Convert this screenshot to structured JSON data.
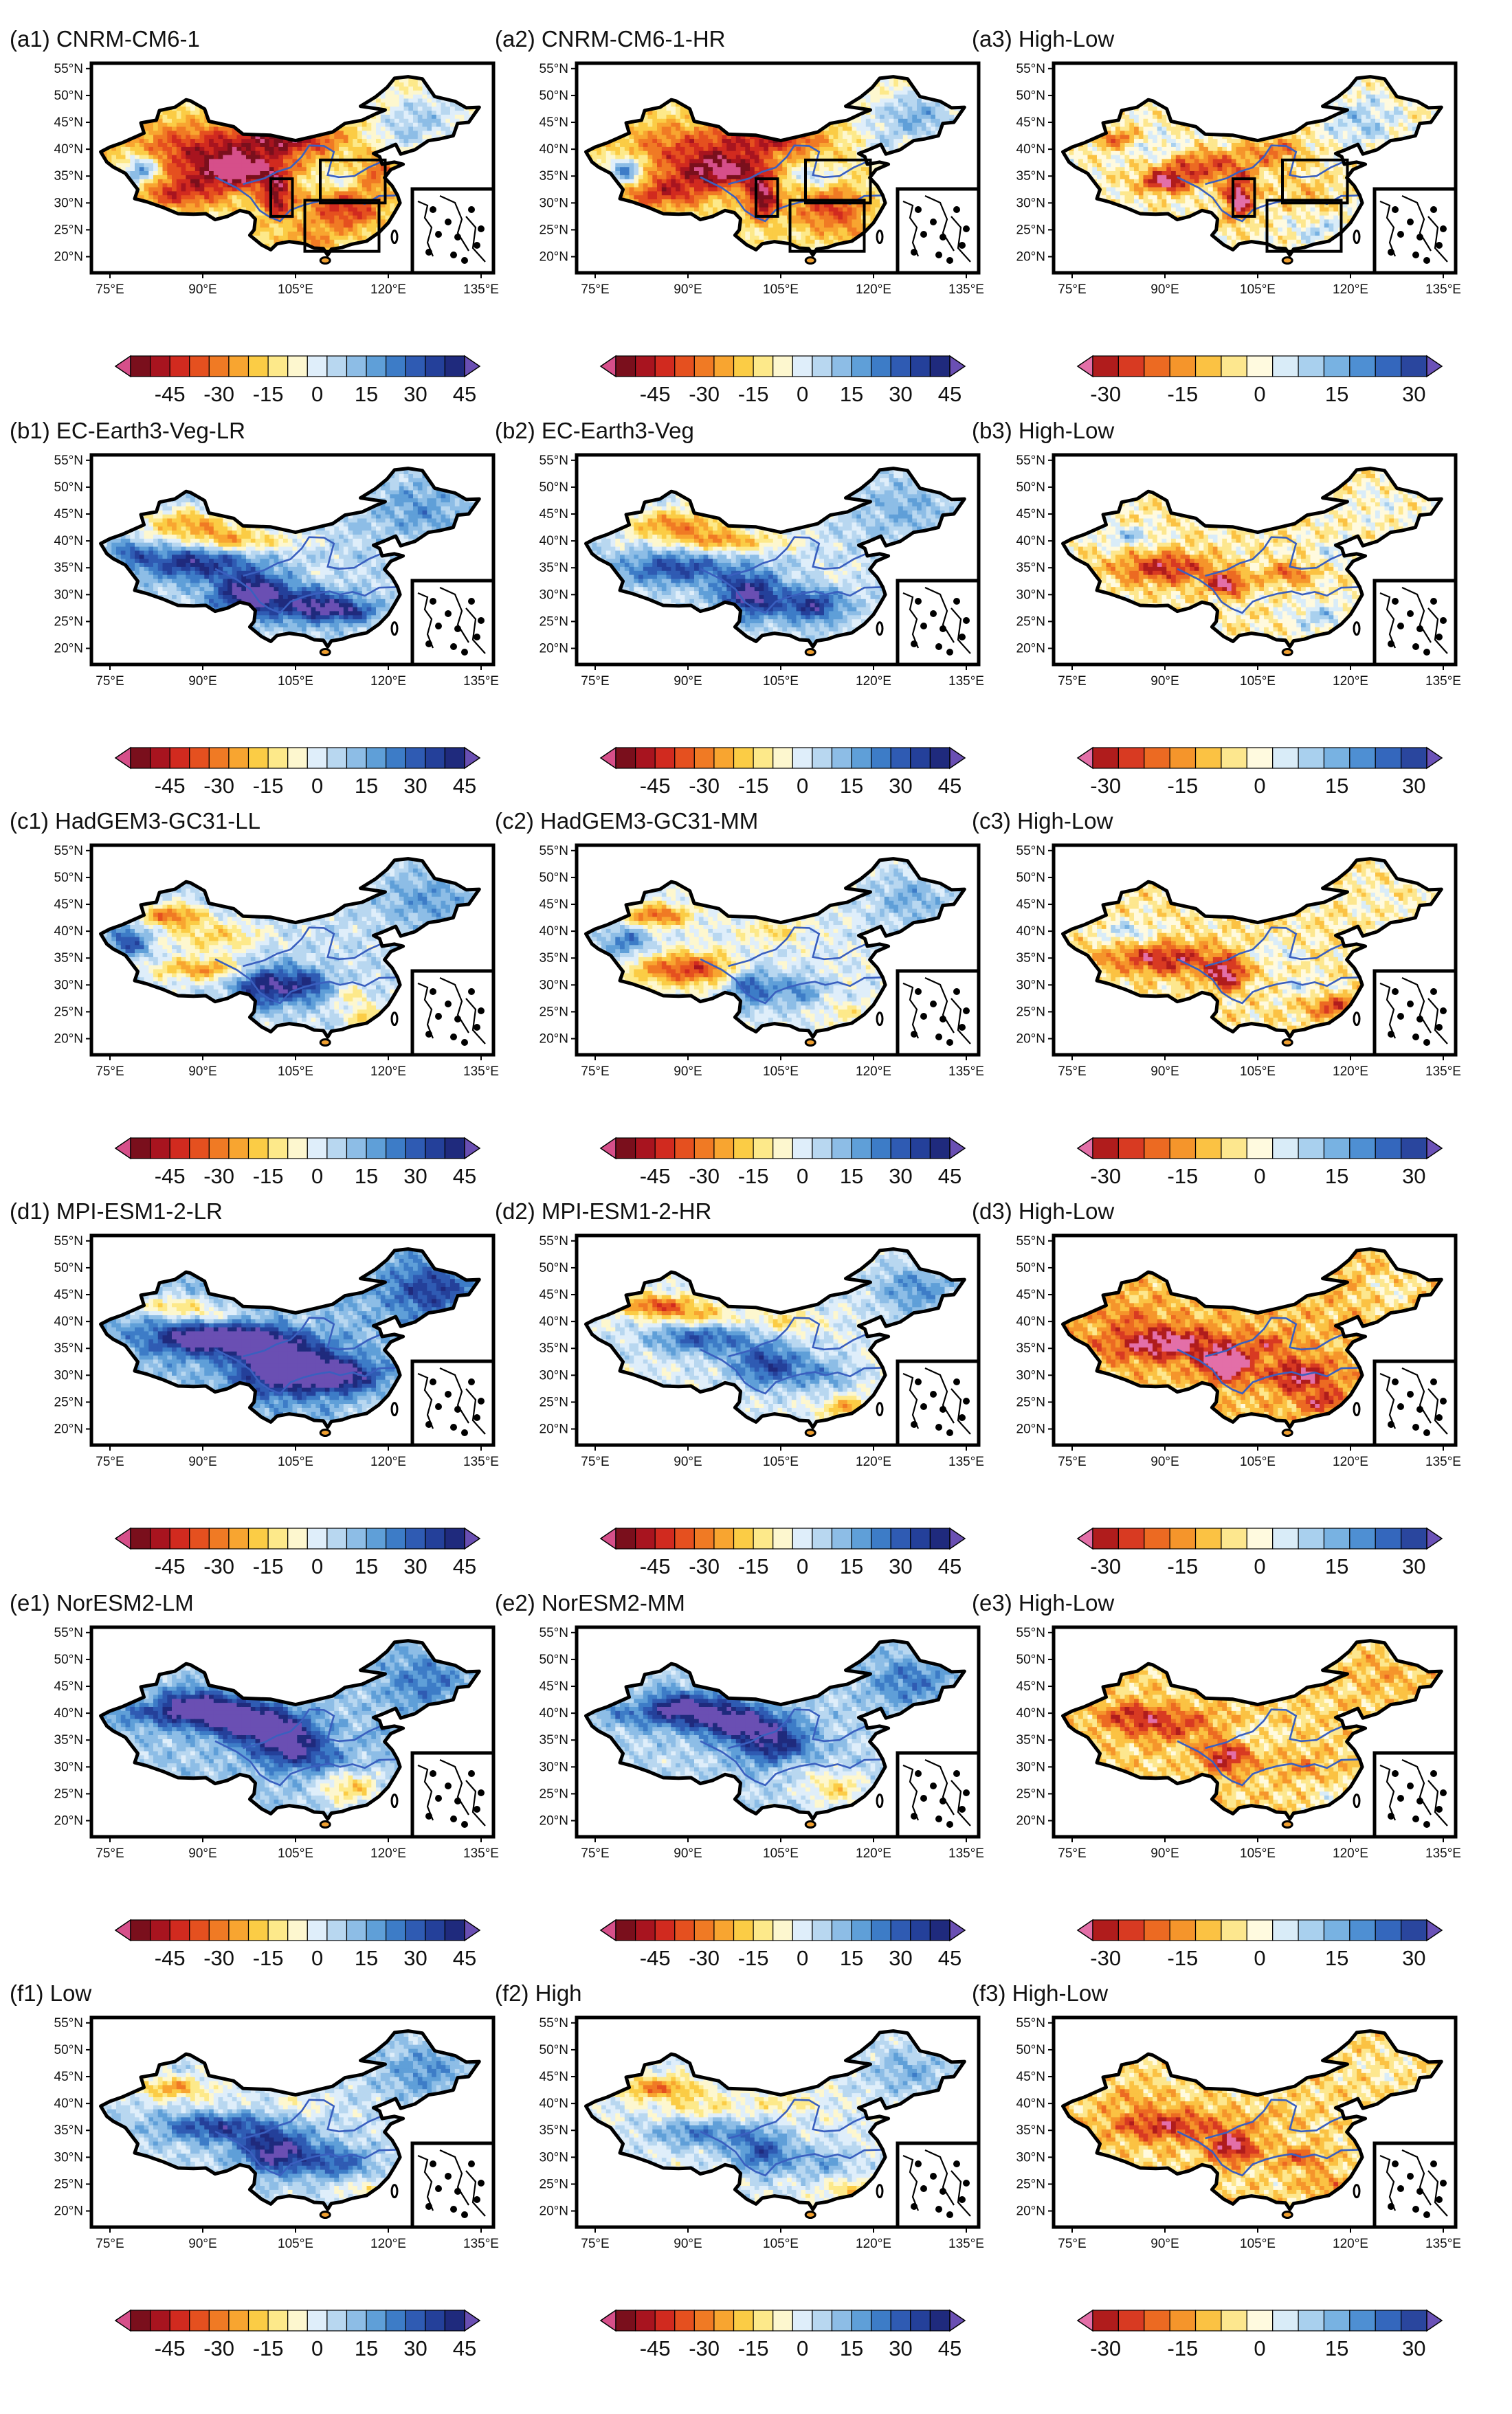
{
  "figure": {
    "lat_labels": [
      "55°N",
      "50°N",
      "45°N",
      "40°N",
      "35°N",
      "30°N",
      "25°N",
      "20°N"
    ],
    "lon_labels": [
      "75°E",
      "90°E",
      "105°E",
      "120°E",
      "135°E"
    ],
    "model_colorbar_labels": [
      "-45",
      "-30",
      "-15",
      "0",
      "15",
      "30",
      "45"
    ],
    "diff_colorbar_labels": [
      "-30",
      "-15",
      "0",
      "15",
      "30"
    ],
    "model_colors": [
      "#7a0f1c",
      "#a8141f",
      "#d12a1f",
      "#e5501f",
      "#f07a24",
      "#f8a530",
      "#fbcc45",
      "#fde98a",
      "#fdf7cf",
      "#dfeefa",
      "#b8d7f0",
      "#8dbde6",
      "#5f9fd8",
      "#3d7cc7",
      "#2f5bb3",
      "#24409a",
      "#1f2a7d"
    ],
    "model_left_tip": "#d64f8a",
    "model_right_tip": "#6a4fb3",
    "diff_colors": [
      "#b01c1c",
      "#d83a22",
      "#ec6a22",
      "#f5952b",
      "#fbc243",
      "#fde78e",
      "#fffadf",
      "#d9ecf8",
      "#a9d0ee",
      "#78b2e2",
      "#4e8fd3",
      "#3467bd",
      "#2a469e"
    ],
    "diff_left_tip": "#e36fa8",
    "diff_right_tip": "#6b52b8",
    "panels": [
      {
        "title": "(a1) CNRM-CM6-1",
        "type": "model",
        "boxes": true,
        "pattern": "a1"
      },
      {
        "title": "(a2) CNRM-CM6-1-HR",
        "type": "model",
        "boxes": true,
        "pattern": "a2"
      },
      {
        "title": "(a3) High-Low",
        "type": "diff",
        "boxes": true,
        "pattern": "a3"
      },
      {
        "title": "(b1) EC-Earth3-Veg-LR",
        "type": "model",
        "boxes": false,
        "pattern": "b1"
      },
      {
        "title": "(b2) EC-Earth3-Veg",
        "type": "model",
        "boxes": false,
        "pattern": "b2"
      },
      {
        "title": "(b3) High-Low",
        "type": "diff",
        "boxes": false,
        "pattern": "b3"
      },
      {
        "title": "(c1) HadGEM3-GC31-LL",
        "type": "model",
        "boxes": false,
        "pattern": "c1"
      },
      {
        "title": "(c2) HadGEM3-GC31-MM",
        "type": "model",
        "boxes": false,
        "pattern": "c2"
      },
      {
        "title": "(c3) High-Low",
        "type": "diff",
        "boxes": false,
        "pattern": "c3"
      },
      {
        "title": "(d1) MPI-ESM1-2-LR",
        "type": "model",
        "boxes": false,
        "pattern": "d1"
      },
      {
        "title": "(d2) MPI-ESM1-2-HR",
        "type": "model",
        "boxes": false,
        "pattern": "d2"
      },
      {
        "title": "(d3) High-Low",
        "type": "diff",
        "boxes": false,
        "pattern": "d3"
      },
      {
        "title": "(e1) NorESM2-LM",
        "type": "model",
        "boxes": false,
        "pattern": "e1"
      },
      {
        "title": "(e2) NorESM2-MM",
        "type": "model",
        "boxes": false,
        "pattern": "e2"
      },
      {
        "title": "(e3) High-Low",
        "type": "diff",
        "boxes": false,
        "pattern": "e3"
      },
      {
        "title": "(f1) Low",
        "type": "model",
        "boxes": false,
        "pattern": "f1"
      },
      {
        "title": "(f2) High",
        "type": "model",
        "boxes": false,
        "pattern": "f2"
      },
      {
        "title": "(f3) High-Low",
        "type": "diff",
        "boxes": false,
        "pattern": "f3"
      }
    ]
  }
}
